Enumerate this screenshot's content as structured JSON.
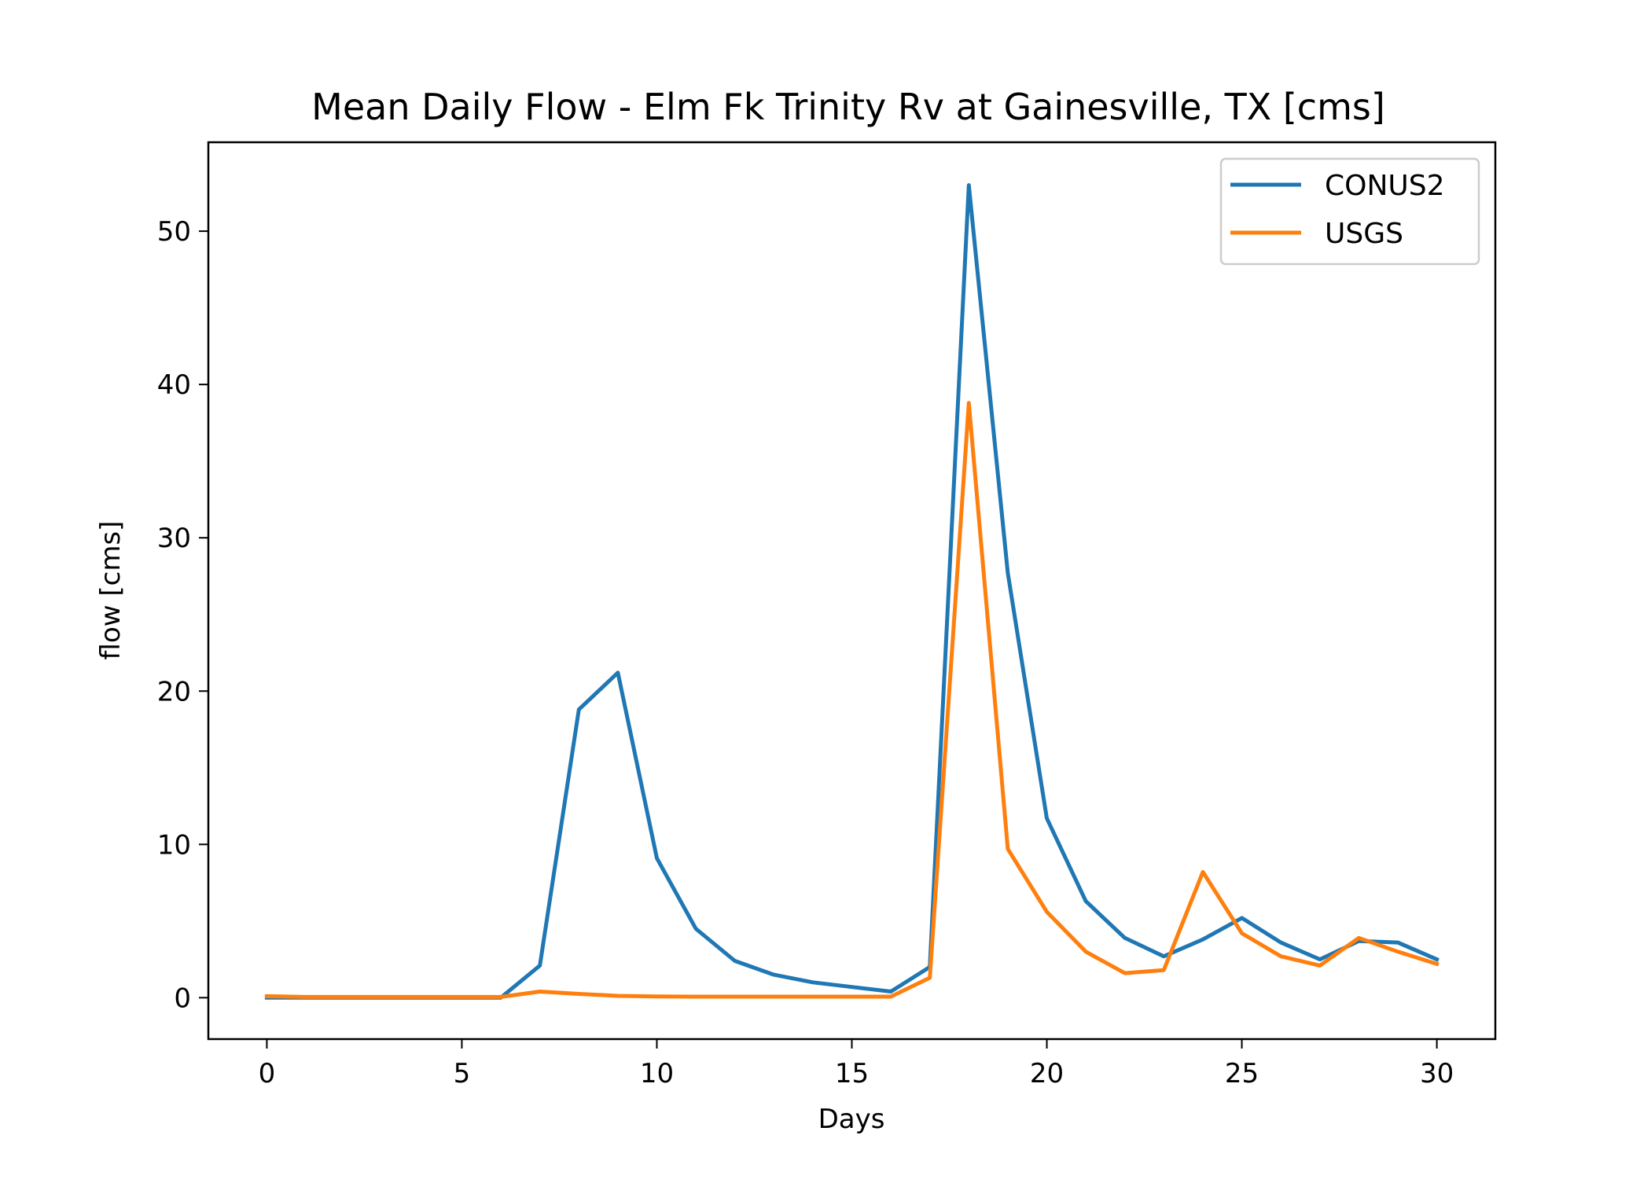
{
  "chart_data": {
    "type": "line",
    "title": "Mean Daily Flow - Elm Fk Trinity Rv at Gainesville, TX [cms]",
    "xlabel": "Days",
    "ylabel": "flow [cms]",
    "xlim": [
      -1.5,
      31.5
    ],
    "ylim": [
      -2.7,
      55.8
    ],
    "xticks": [
      0,
      5,
      10,
      15,
      20,
      25,
      30
    ],
    "yticks": [
      0,
      10,
      20,
      30,
      40,
      50
    ],
    "grid": false,
    "legend_position": "upper right",
    "x": [
      0,
      1,
      2,
      3,
      4,
      5,
      6,
      7,
      8,
      9,
      10,
      11,
      12,
      13,
      14,
      15,
      16,
      17,
      18,
      19,
      20,
      21,
      22,
      23,
      24,
      25,
      26,
      27,
      28,
      29,
      30
    ],
    "series": [
      {
        "name": "CONUS2",
        "color": "#1f77b4",
        "values": [
          0,
          0,
          0,
          0,
          0,
          0,
          0,
          2.1,
          18.8,
          21.2,
          9.1,
          4.5,
          2.4,
          1.5,
          1.0,
          0.7,
          0.4,
          2.0,
          53.0,
          27.7,
          11.7,
          6.3,
          3.9,
          2.7,
          3.8,
          5.2,
          3.6,
          2.5,
          3.7,
          3.6,
          2.5
        ]
      },
      {
        "name": "USGS",
        "color": "#ff7f0e",
        "values": [
          0.1,
          0.05,
          0.05,
          0.05,
          0.05,
          0.05,
          0.05,
          0.4,
          0.25,
          0.12,
          0.08,
          0.07,
          0.07,
          0.07,
          0.07,
          0.07,
          0.07,
          1.3,
          38.8,
          9.7,
          5.6,
          3.0,
          1.6,
          1.8,
          8.2,
          4.2,
          2.7,
          2.1,
          3.9,
          3.0,
          2.2
        ]
      }
    ]
  }
}
